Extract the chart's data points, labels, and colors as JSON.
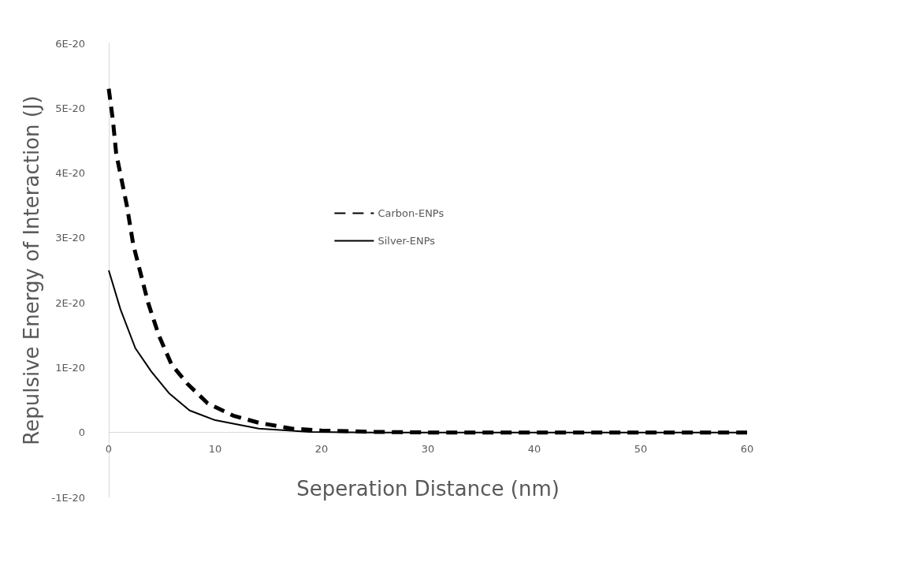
{
  "chart_data": {
    "type": "line",
    "xlabel": "Seperation Distance (nm)",
    "ylabel": "Repulsive Energy of Interaction (J)",
    "xlim": [
      0,
      60
    ],
    "xticks": [
      0,
      10,
      20,
      30,
      40,
      50,
      60
    ],
    "ylim": [
      -1e-20,
      6e-20
    ],
    "yticks": [
      {
        "value": -1e-20,
        "label": "-1E-20"
      },
      {
        "value": 0,
        "label": "0"
      },
      {
        "value": 1e-20,
        "label": "1E-20"
      },
      {
        "value": 2e-20,
        "label": "2E-20"
      },
      {
        "value": 3e-20,
        "label": "3E-20"
      },
      {
        "value": 4e-20,
        "label": "4E-20"
      },
      {
        "value": 5e-20,
        "label": "5E-20"
      },
      {
        "value": 6e-20,
        "label": "6E-20"
      }
    ],
    "grid": false,
    "legend": "top left",
    "marker": "none",
    "series": [
      {
        "name": "Carbon-ENPs",
        "color": "#000000",
        "line_style": "dashed",
        "x": [
          0,
          0.4,
          0.7,
          1.2,
          1.7,
          2.3,
          3,
          3.7,
          4.7,
          5.9,
          7.4,
          9.3,
          11.7,
          14.1,
          17.2,
          20,
          25,
          30,
          40,
          50,
          60
        ],
        "values": [
          5.3e-20,
          4.8e-20,
          4.3e-20,
          3.9e-20,
          3.5e-20,
          2.9e-20,
          2.45e-20,
          2e-20,
          1.5e-20,
          1.05e-20,
          7.5e-21,
          4.5e-21,
          2.6e-21,
          1.5e-21,
          6e-22,
          3e-22,
          1e-22,
          0,
          0,
          0,
          0
        ]
      },
      {
        "name": "Silver-ENPs",
        "color": "#000000",
        "line_style": "solid",
        "x": [
          0,
          1.1,
          2.5,
          4,
          5.7,
          7.6,
          10,
          14.1,
          18.9,
          25,
          30,
          40,
          50,
          60
        ],
        "values": [
          2.5e-20,
          1.9e-20,
          1.3e-20,
          9.4e-21,
          6e-21,
          3.4e-21,
          1.9e-21,
          6e-22,
          1e-22,
          0,
          0,
          0,
          0,
          0
        ]
      }
    ]
  }
}
